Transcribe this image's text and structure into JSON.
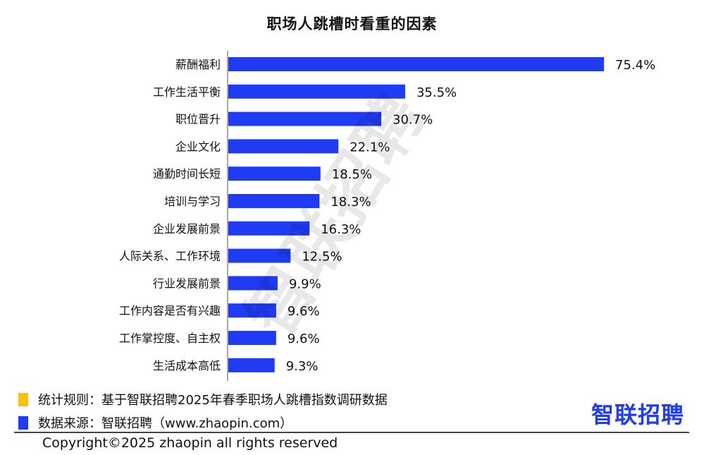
{
  "chart_data": {
    "type": "bar",
    "orientation": "horizontal",
    "title": "职场人跳槽时看重的因素",
    "categories": [
      "薪酬福利",
      "工作生活平衡",
      "职位晋升",
      "企业文化",
      "通勤时间长短",
      "培训与学习",
      "企业发展前景",
      "人际关系、工作环境",
      "行业发展前景",
      "工作内容是否有兴趣",
      "工作掌控度、自主权",
      "生活成本高低"
    ],
    "values": [
      75.4,
      35.5,
      30.7,
      22.1,
      18.5,
      18.3,
      16.3,
      12.5,
      9.9,
      9.6,
      9.6,
      9.3
    ],
    "value_labels": [
      "75.4%",
      "35.5%",
      "30.7%",
      "22.1%",
      "18.5%",
      "18.3%",
      "16.3%",
      "12.5%",
      "9.9%",
      "9.6%",
      "9.6%",
      "9.3%"
    ],
    "unit": "%",
    "xlim": [
      0,
      75.4
    ],
    "grid": false,
    "bar_color": "#1f3bf3"
  },
  "watermark": "智联招聘",
  "legend": {
    "items": [
      {
        "color": "#ffc000",
        "text": "统计规则：基于智联招聘2025年春季职场人跳槽指数调研数据"
      },
      {
        "color": "#1f3bf3",
        "text": "数据来源：智联招聘（www.zhaopin.com）"
      }
    ]
  },
  "brand": {
    "name": "智联招聘",
    "color": "#1f3bf3"
  },
  "footer": {
    "copyright": "Copyright©2025 zhaopin all rights reserved"
  }
}
